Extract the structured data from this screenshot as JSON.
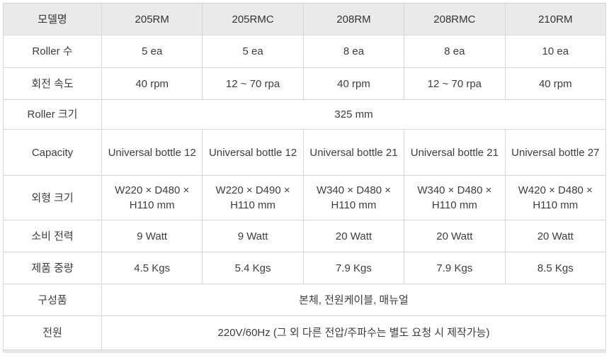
{
  "table": {
    "columns": [
      "모델명",
      "205RM",
      "205RMC",
      "208RM",
      "208RMC",
      "210RM"
    ],
    "rows": [
      {
        "label": "Roller 수",
        "cells": [
          "5 ea",
          "5 ea",
          "8 ea",
          "8 ea",
          "10 ea"
        ]
      },
      {
        "label": "회전 속도",
        "cells": [
          "40 rpm",
          "12 ~ 70 rpa",
          "40 rpm",
          "12 ~ 70 rpa",
          "40 rpm"
        ]
      },
      {
        "label": "Roller 크기",
        "span": "325 mm"
      },
      {
        "label": "Capacity",
        "cells": [
          "Universal bottle 12",
          "Universal bottle 12",
          "Universal bottle 21",
          "Universal bottle 21",
          "Universal bottle 27"
        ]
      },
      {
        "label": "외형 크기",
        "cells": [
          "W220 × D480 × H110 mm",
          "W220 × D490 × H110 mm",
          "W340 × D480 × H110 mm",
          "W340 × D480 × H110 mm",
          "W420 × D480 × H110 mm"
        ]
      },
      {
        "label": "소비 전력",
        "cells": [
          "9 Watt",
          "9 Watt",
          "20 Watt",
          "20 Watt",
          "20 Watt"
        ]
      },
      {
        "label": "제품 중량",
        "cells": [
          "4.5 Kgs",
          "5.4 Kgs",
          "7.9 Kgs",
          "7.9 Kgs",
          "8.5 Kgs"
        ]
      },
      {
        "label": "구성품",
        "span": "본체, 전원케이블, 매뉴얼"
      },
      {
        "label": "전원",
        "span": "220V/60Hz (그 외 다른 전압/주파수는 별도 요청 시 제작가능)"
      }
    ],
    "colors": {
      "header_bg": "#eaeaea",
      "border": "#d6d6d6",
      "text": "#3d3d3d"
    }
  }
}
